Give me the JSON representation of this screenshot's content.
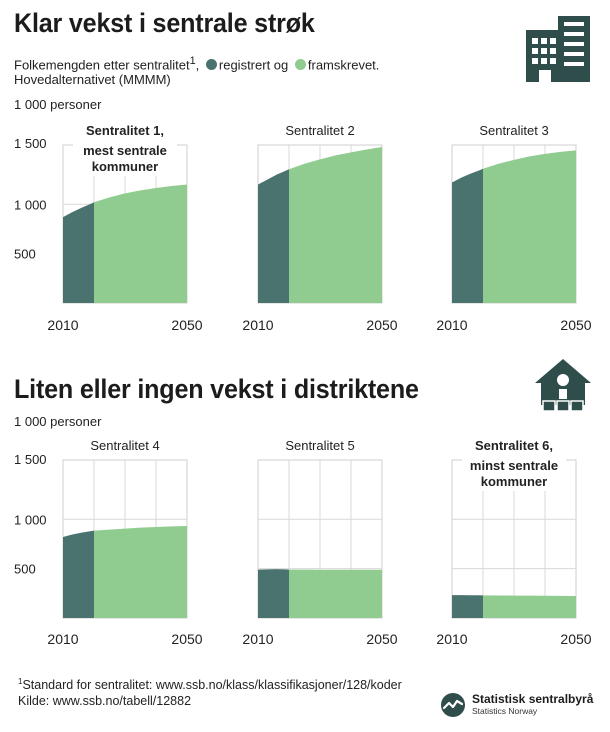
{
  "header": {
    "title": "Klar vekst i sentrale strøk",
    "subtitle_start": "Folkemengden etter sentralitet",
    "subtitle_sup": "1",
    "subtitle_mid": ",",
    "legend_registered": "registrert og",
    "legend_projected": "framskrevet.",
    "subtitle_end": "Hovedalternativet (MMMM)",
    "unit": "1 000 personer"
  },
  "section2": {
    "title": "Liten eller ingen vekst i distriktene",
    "unit": "1 000 personer"
  },
  "footer": {
    "sup": "1",
    "footnote": "Standard for sentralitet: www.ssb.no/klass/klassifikasjoner/128/koder",
    "source": "Kilde: www.ssb.no/tabell/12882",
    "logo_name": "Statistisk sentralbyrå",
    "logo_sub": "Statistics Norway"
  },
  "colors": {
    "registered": "#4a7370",
    "projected": "#90cc90",
    "grid": "#d8d8d8",
    "frame": "#cfcfcf",
    "icon": "#2f4d4b"
  },
  "icons": [
    "office-building-icon",
    "house-icon",
    "ssb-logo-icon"
  ],
  "chart_data": [
    {
      "type": "area",
      "title_lines": [
        "Sentralitet 1,",
        "mest sentrale",
        "kommuner"
      ],
      "title_bold": true,
      "xlabel": "",
      "ylabel": "1 000 personer",
      "x_ticks": [
        "2010",
        "2050"
      ],
      "y_ticks": [
        "1 500",
        "1 000",
        "500"
      ],
      "xlim": [
        2010,
        2050
      ],
      "ylim": [
        0,
        1600
      ],
      "grid": true,
      "series": [
        {
          "name": "registrert",
          "x": [
            2010,
            2013,
            2016,
            2019,
            2020
          ],
          "values": [
            870,
            920,
            965,
            1005,
            1020
          ]
        },
        {
          "name": "framskrevet",
          "x": [
            2020,
            2025,
            2030,
            2035,
            2040,
            2045,
            2050
          ],
          "values": [
            1020,
            1070,
            1110,
            1140,
            1165,
            1185,
            1200
          ]
        }
      ]
    },
    {
      "type": "area",
      "title_lines": [
        "Sentralitet 2"
      ],
      "title_bold": false,
      "xlabel": "",
      "ylabel": "",
      "x_ticks": [
        "2010",
        "2050"
      ],
      "y_ticks": [],
      "xlim": [
        2010,
        2050
      ],
      "ylim": [
        0,
        1600
      ],
      "grid": true,
      "series": [
        {
          "name": "registrert",
          "x": [
            2010,
            2013,
            2016,
            2019,
            2020
          ],
          "values": [
            1200,
            1250,
            1300,
            1340,
            1355
          ]
        },
        {
          "name": "framskrevet",
          "x": [
            2020,
            2025,
            2030,
            2035,
            2040,
            2045,
            2050
          ],
          "values": [
            1355,
            1410,
            1455,
            1495,
            1525,
            1555,
            1580
          ]
        }
      ]
    },
    {
      "type": "area",
      "title_lines": [
        "Sentralitet 3"
      ],
      "title_bold": false,
      "xlabel": "",
      "ylabel": "",
      "x_ticks": [
        "2010",
        "2050"
      ],
      "y_ticks": [],
      "xlim": [
        2010,
        2050
      ],
      "ylim": [
        0,
        1600
      ],
      "grid": true,
      "series": [
        {
          "name": "registrert",
          "x": [
            2010,
            2013,
            2016,
            2019,
            2020
          ],
          "values": [
            1220,
            1270,
            1310,
            1345,
            1360
          ]
        },
        {
          "name": "framskrevet",
          "x": [
            2020,
            2025,
            2030,
            2035,
            2040,
            2045,
            2050
          ],
          "values": [
            1360,
            1410,
            1450,
            1485,
            1510,
            1530,
            1545
          ]
        }
      ]
    },
    {
      "type": "area",
      "title_lines": [
        "Sentralitet 4"
      ],
      "title_bold": false,
      "xlabel": "",
      "ylabel": "1 000 personer",
      "x_ticks": [
        "2010",
        "2050"
      ],
      "y_ticks": [
        "1 500",
        "1 000",
        "500"
      ],
      "xlim": [
        2010,
        2050
      ],
      "ylim": [
        0,
        1600
      ],
      "grid": true,
      "series": [
        {
          "name": "registrert",
          "x": [
            2010,
            2013,
            2016,
            2019,
            2020
          ],
          "values": [
            820,
            845,
            865,
            880,
            885
          ]
        },
        {
          "name": "framskrevet",
          "x": [
            2020,
            2025,
            2030,
            2035,
            2040,
            2045,
            2050
          ],
          "values": [
            885,
            895,
            905,
            915,
            922,
            928,
            932
          ]
        }
      ]
    },
    {
      "type": "area",
      "title_lines": [
        "Sentralitet 5"
      ],
      "title_bold": false,
      "xlabel": "",
      "ylabel": "",
      "x_ticks": [
        "2010",
        "2050"
      ],
      "y_ticks": [],
      "xlim": [
        2010,
        2050
      ],
      "ylim": [
        0,
        1600
      ],
      "grid": true,
      "series": [
        {
          "name": "registrert",
          "x": [
            2010,
            2013,
            2016,
            2019,
            2020
          ],
          "values": [
            490,
            492,
            495,
            492,
            490
          ]
        },
        {
          "name": "framskrevet",
          "x": [
            2020,
            2025,
            2030,
            2035,
            2040,
            2045,
            2050
          ],
          "values": [
            490,
            490,
            489,
            489,
            488,
            488,
            488
          ]
        }
      ]
    },
    {
      "type": "area",
      "title_lines": [
        "Sentralitet 6,",
        "minst sentrale",
        "kommuner"
      ],
      "title_bold": true,
      "xlabel": "",
      "ylabel": "",
      "x_ticks": [
        "2010",
        "2050"
      ],
      "y_ticks": [],
      "xlim": [
        2010,
        2050
      ],
      "ylim": [
        0,
        1600
      ],
      "grid": true,
      "series": [
        {
          "name": "registrert",
          "x": [
            2010,
            2013,
            2016,
            2019,
            2020
          ],
          "values": [
            232,
            232,
            231,
            230,
            229
          ]
        },
        {
          "name": "framskrevet",
          "x": [
            2020,
            2025,
            2030,
            2035,
            2040,
            2045,
            2050
          ],
          "values": [
            229,
            228,
            227,
            226,
            225,
            224,
            223
          ]
        }
      ]
    }
  ]
}
